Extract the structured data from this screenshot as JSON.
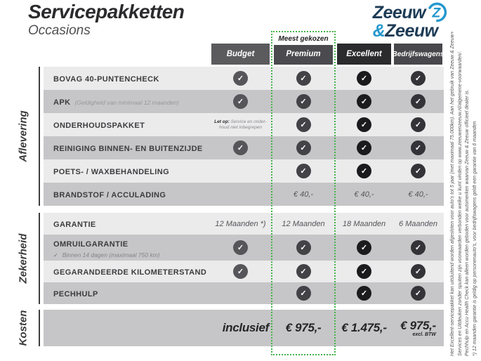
{
  "page": {
    "title": "Servicepakketten",
    "subtitle": "Occasions"
  },
  "logo": {
    "word1": "Zeeuw",
    "amp": "&",
    "word2": "Zeeuw",
    "z_icon": "zeeuw-z-swirl-icon",
    "navy": "#1d3b55",
    "blue": "#2497cd"
  },
  "badge": {
    "label": "Meest gekozen"
  },
  "accent_green": "#44b449",
  "columns": [
    {
      "id": "budget",
      "label": "Budget"
    },
    {
      "id": "premium",
      "label": "Premium",
      "highlight": true
    },
    {
      "id": "excellent",
      "label": "Excellent"
    },
    {
      "id": "bedrijfswagens",
      "label": "Bedrijfswagens"
    }
  ],
  "sections": [
    {
      "id": "aflevering",
      "label": "Aflevering",
      "rows": [
        {
          "label": "BOVAG 40-PUNTENCHECK",
          "cells": [
            {
              "t": "check"
            },
            {
              "t": "check"
            },
            {
              "t": "check"
            },
            {
              "t": "check"
            }
          ]
        },
        {
          "label": "APK",
          "note_inline": "(Geldigheid van minimaal 12 maanden)",
          "cells": [
            {
              "t": "check"
            },
            {
              "t": "check"
            },
            {
              "t": "check"
            },
            {
              "t": "check"
            }
          ]
        },
        {
          "label": "ONDERHOUDSPAKKET",
          "cells": [
            {
              "t": "note",
              "bold": "Let op:",
              "line1": "Service en onder-",
              "line2": "houd niet inbegrepen"
            },
            {
              "t": "check"
            },
            {
              "t": "check"
            },
            {
              "t": "check"
            }
          ]
        },
        {
          "label": "REINIGING BINNEN- EN BUITENZIJDE",
          "cells": [
            {
              "t": "check"
            },
            {
              "t": "check"
            },
            {
              "t": "check"
            },
            {
              "t": "check"
            }
          ]
        },
        {
          "label": "POETS- / WAXBEHANDELING",
          "cells": [
            {
              "t": "none"
            },
            {
              "t": "check"
            },
            {
              "t": "check"
            },
            {
              "t": "check"
            }
          ]
        },
        {
          "label": "BRANDSTOF / ACCULADING",
          "cells": [
            {
              "t": "none"
            },
            {
              "t": "text",
              "v": "€ 40,-"
            },
            {
              "t": "text",
              "v": "€ 40,-"
            },
            {
              "t": "text",
              "v": "€ 40,-"
            }
          ]
        }
      ]
    },
    {
      "id": "zekerheid",
      "label": "Zekerheid",
      "rows": [
        {
          "label": "GARANTIE",
          "cells": [
            {
              "t": "text",
              "v": "12 Maanden *)"
            },
            {
              "t": "text",
              "v": "12 Maanden"
            },
            {
              "t": "text",
              "v": "18 Maanden"
            },
            {
              "t": "text",
              "v": "6 Maanden"
            }
          ]
        },
        {
          "label": "OMRUILGARANTIE",
          "sub_note_tick": "✓",
          "sub_note": "Binnen 14 dagen (maximaal 750 km)",
          "cells": [
            {
              "t": "check"
            },
            {
              "t": "check"
            },
            {
              "t": "check"
            },
            {
              "t": "check"
            }
          ]
        },
        {
          "label": "GEGARANDEERDE KILOMETERSTAND",
          "cells": [
            {
              "t": "check"
            },
            {
              "t": "check"
            },
            {
              "t": "check"
            },
            {
              "t": "check"
            }
          ]
        },
        {
          "label": "PECHHULP",
          "cells": [
            {
              "t": "none"
            },
            {
              "t": "check"
            },
            {
              "t": "check"
            },
            {
              "t": "check"
            }
          ]
        }
      ]
    },
    {
      "id": "kosten",
      "label": "Kosten",
      "rows": [
        {
          "label": "",
          "cells": [
            {
              "t": "big",
              "v": "inclusief"
            },
            {
              "t": "big",
              "v": "€ 975,-"
            },
            {
              "t": "big",
              "v": "€ 1.475,-"
            },
            {
              "t": "big",
              "v": "€ 975,-",
              "sub": "excl. BTW"
            }
          ]
        }
      ]
    }
  ],
  "check_glyph": "✓",
  "disclaimer_lines": [
    "Het Excellent-servicepakket kan uitsluitend worden afgesloten voor auto's tot 5 jaar (met maximaal 75.000km). Aan het gebruik van Zeeuw & Zeeuw+",
    "Services en Uitdeuken zonder spuiten zijn voorwaarden verbonden welke u kunt vinden op www.zeeuwenzeeuw.nl/algemene-voorwaarden/.",
    "Pechhulp en Accu Health Check kan alleen worden geboden voor automerken waarvan Zeeuw & Zeeuw officieel dealer is.",
    "*) 12 maanden garantie is geldig op personenauto's, voor bedrijfswagens geldt een garantie van 6 maanden"
  ]
}
